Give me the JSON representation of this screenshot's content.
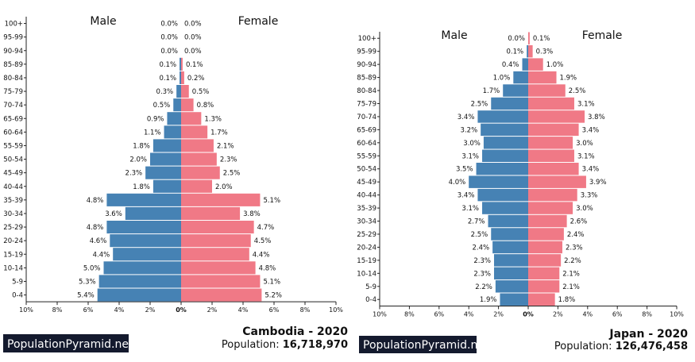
{
  "chart_data": [
    {
      "type": "bar",
      "country": "Cambodia - 2020",
      "population_label": "Population: ",
      "population_value": "16,718,970",
      "brand": "PopulationPyramid.net",
      "male_label": "Male",
      "female_label": "Female",
      "categories": [
        "100+",
        "95-99",
        "90-94",
        "85-89",
        "80-84",
        "75-79",
        "70-74",
        "65-69",
        "60-64",
        "55-59",
        "50-54",
        "45-49",
        "40-44",
        "35-39",
        "30-34",
        "25-29",
        "20-24",
        "15-19",
        "10-14",
        "5-9",
        "0-4"
      ],
      "male_labels": [
        "0.0%",
        "0.0%",
        "0.0%",
        "0.1%",
        "0.1%",
        "0.3%",
        "0.5%",
        "0.9%",
        "1.1%",
        "1.8%",
        "2.0%",
        "2.3%",
        "1.8%",
        "4.8%",
        "3.6%",
        "4.8%",
        "4.6%",
        "4.4%",
        "5.0%",
        "5.3%",
        "5.4%"
      ],
      "female_labels": [
        "0.0%",
        "0.0%",
        "0.0%",
        "0.1%",
        "0.2%",
        "0.5%",
        "0.8%",
        "1.3%",
        "1.7%",
        "2.1%",
        "2.3%",
        "2.5%",
        "2.0%",
        "5.1%",
        "3.8%",
        "4.7%",
        "4.5%",
        "4.4%",
        "4.8%",
        "5.1%",
        "5.2%"
      ],
      "xticks": [
        "10%",
        "8%",
        "6%",
        "4%",
        "2%",
        "0%",
        "2%",
        "4%",
        "6%",
        "8%",
        "10%"
      ],
      "xlim": [
        -10,
        10
      ],
      "male_color": "#4682b4",
      "female_color": "#f07986"
    },
    {
      "type": "bar",
      "country": "Japan - 2020",
      "population_label": "Population: ",
      "population_value": "126,476,458",
      "brand": "PopulationPyramid.net",
      "male_label": "Male",
      "female_label": "Female",
      "categories": [
        "100+",
        "95-99",
        "90-94",
        "85-89",
        "80-84",
        "75-79",
        "70-74",
        "65-69",
        "60-64",
        "55-59",
        "50-54",
        "45-49",
        "40-44",
        "35-39",
        "30-34",
        "25-29",
        "20-24",
        "15-19",
        "10-14",
        "5-9",
        "0-4"
      ],
      "male_labels": [
        "0.0%",
        "0.1%",
        "0.4%",
        "1.0%",
        "1.7%",
        "2.5%",
        "3.4%",
        "3.2%",
        "3.0%",
        "3.1%",
        "3.5%",
        "4.0%",
        "3.4%",
        "3.1%",
        "2.7%",
        "2.5%",
        "2.4%",
        "2.3%",
        "2.3%",
        "2.2%",
        "1.9%"
      ],
      "female_labels": [
        "0.1%",
        "0.3%",
        "1.0%",
        "1.9%",
        "2.5%",
        "3.1%",
        "3.8%",
        "3.4%",
        "3.0%",
        "3.1%",
        "3.4%",
        "3.9%",
        "3.3%",
        "3.0%",
        "2.6%",
        "2.4%",
        "2.3%",
        "2.2%",
        "2.1%",
        "2.1%",
        "1.8%"
      ],
      "xticks": [
        "10%",
        "8%",
        "6%",
        "4%",
        "2%",
        "0%",
        "2%",
        "4%",
        "6%",
        "8%",
        "10%"
      ],
      "xlim": [
        -10,
        10
      ],
      "male_color": "#4682b4",
      "female_color": "#f07986"
    }
  ]
}
